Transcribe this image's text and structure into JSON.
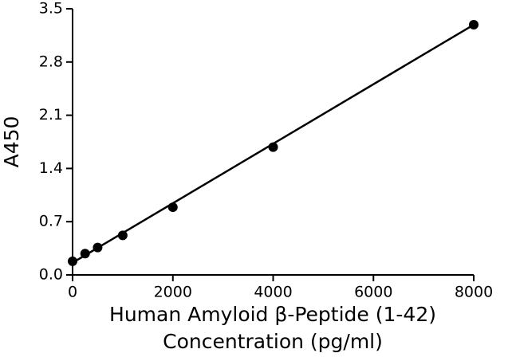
{
  "chart_data": {
    "type": "scatter",
    "y_label": "A450",
    "x_label": [
      "Human Amyloid β-Peptide (1-42)",
      "Concentration (pg/ml)"
    ],
    "x": [
      0,
      250,
      500,
      1000,
      2000,
      4000,
      8000
    ],
    "values": [
      0.18,
      0.28,
      0.36,
      0.52,
      0.89,
      1.68,
      3.29
    ],
    "fit_line": {
      "x": [
        0,
        8000
      ],
      "values": [
        0.16,
        3.29
      ]
    },
    "color": "#000000",
    "xlim": [
      0,
      8000
    ],
    "xticks": [
      0,
      2000,
      4000,
      6000,
      8000
    ],
    "ylim": [
      0,
      3.5
    ],
    "yticks": [
      {
        "value": 0,
        "label": "0.0"
      },
      0.7,
      1.4,
      2.1,
      2.8,
      3.5
    ]
  }
}
